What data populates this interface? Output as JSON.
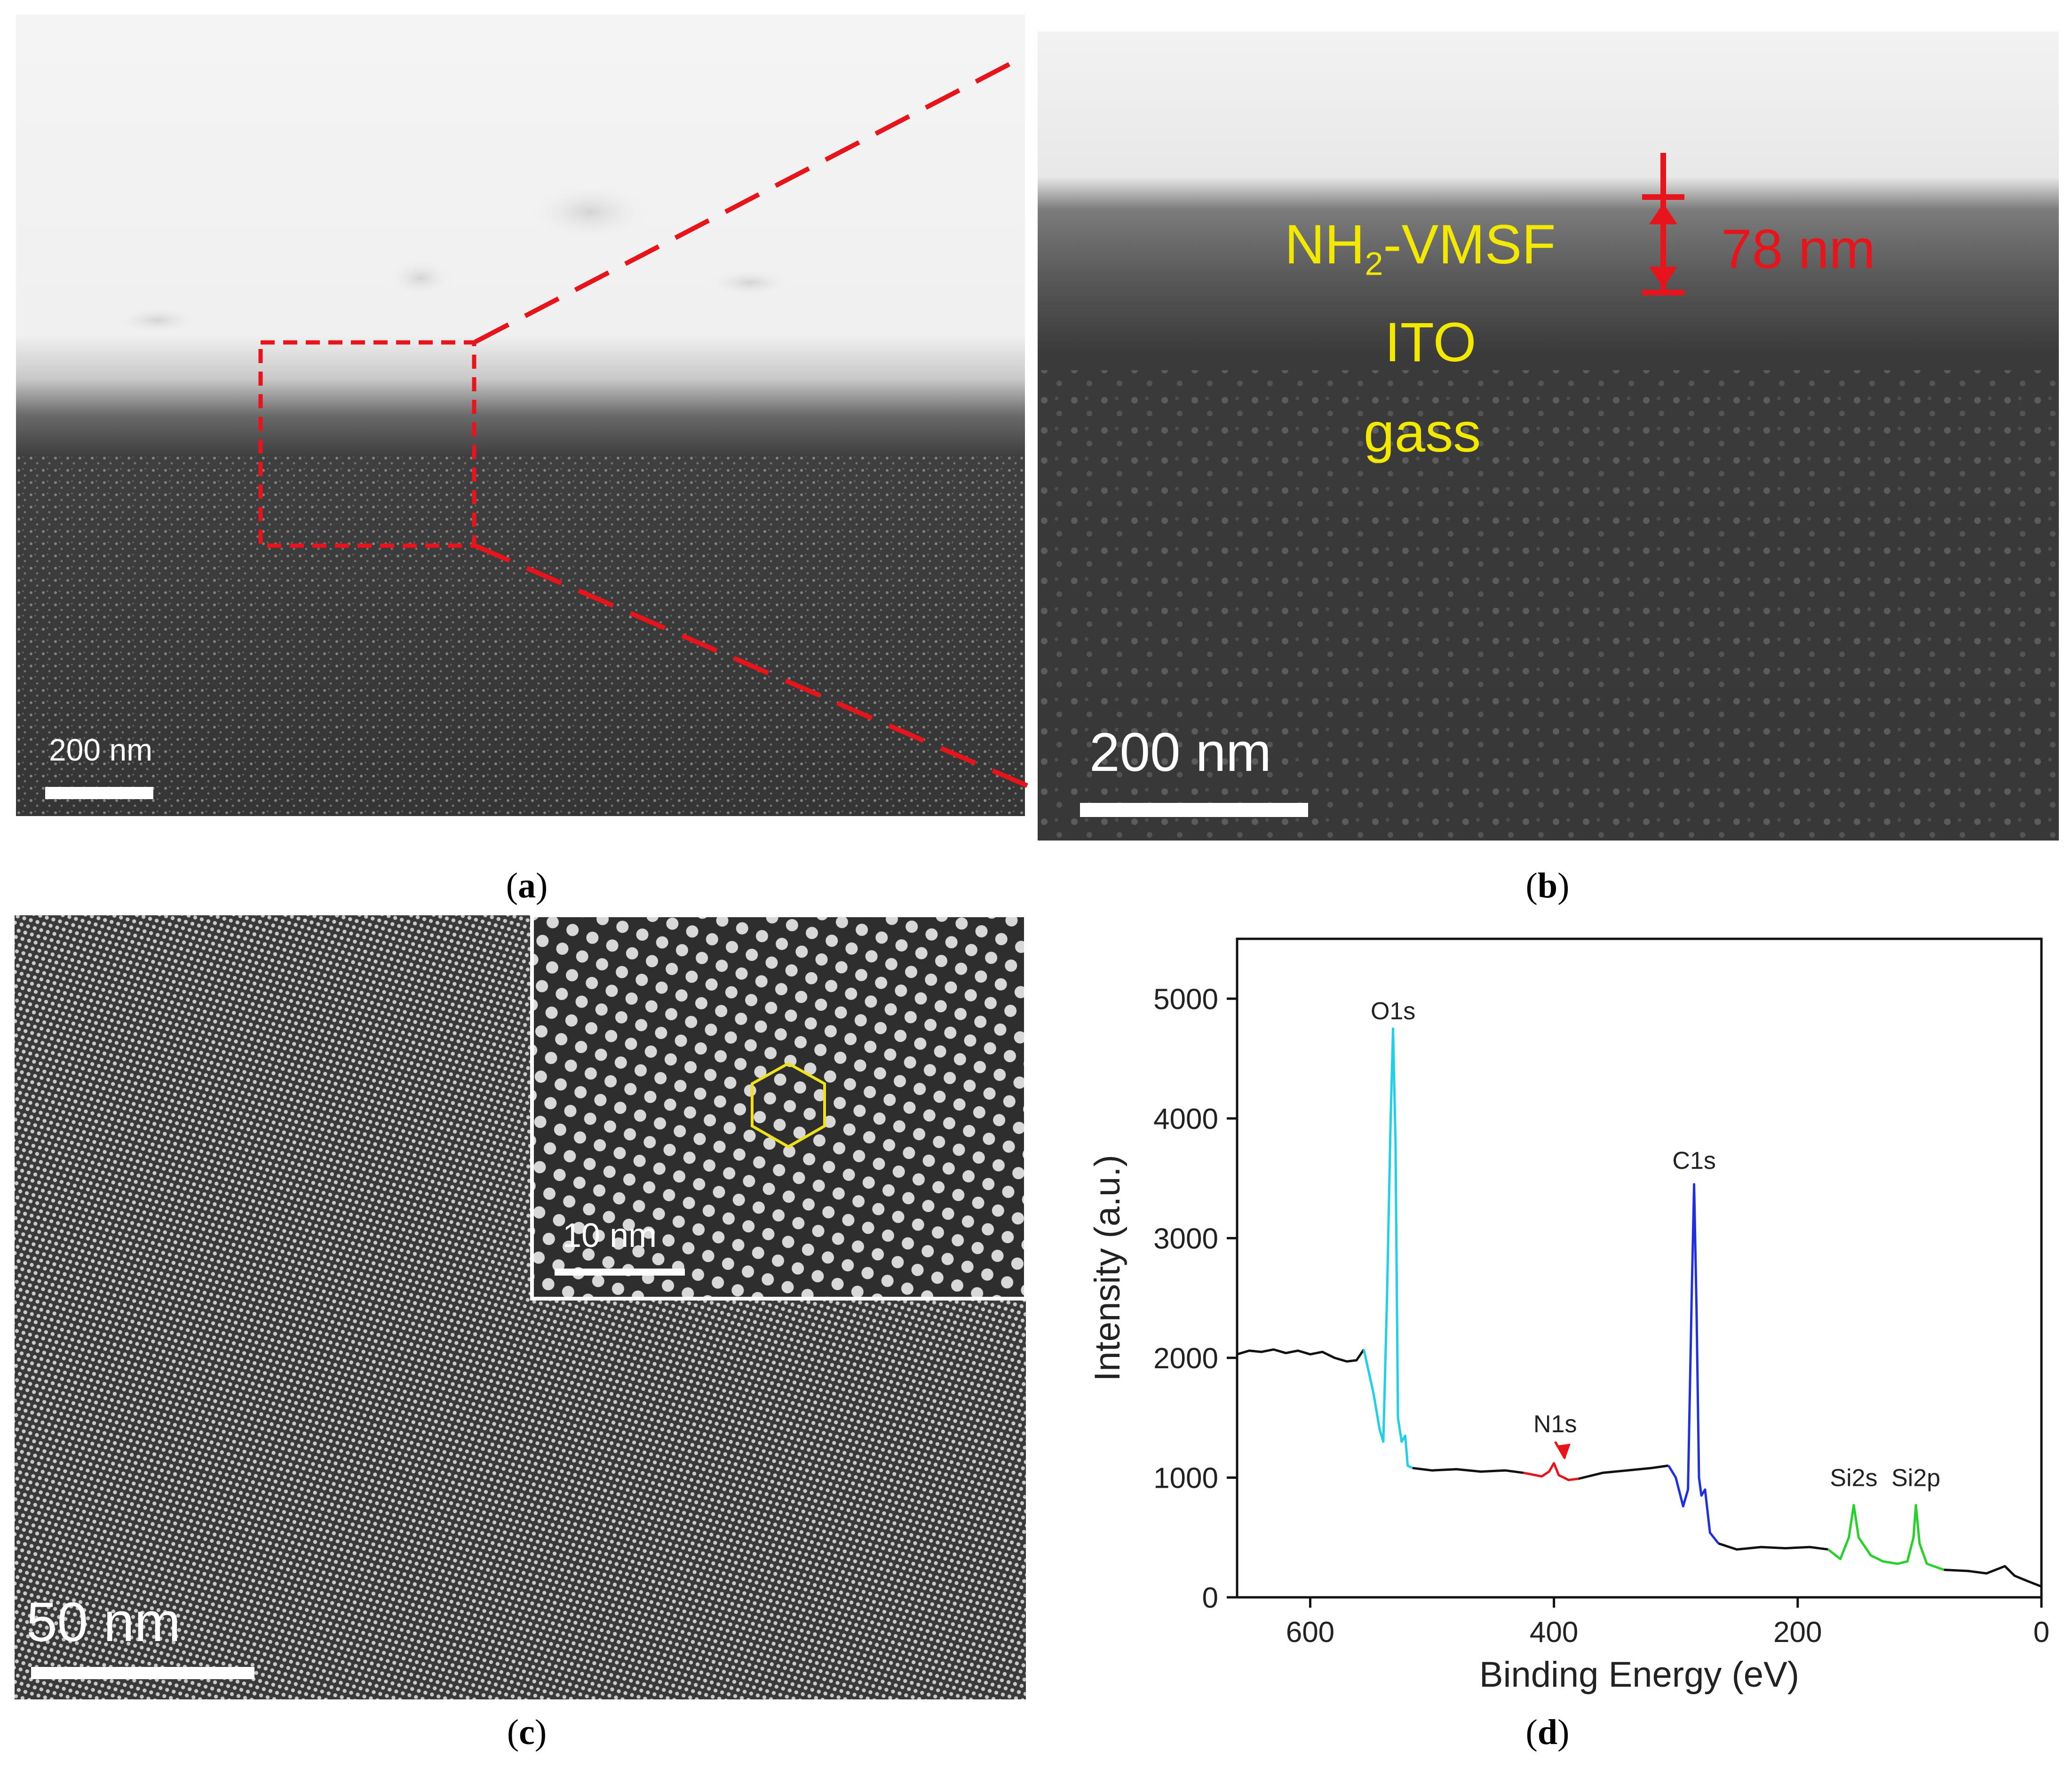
{
  "panels": {
    "a": {
      "letter": "a",
      "scale_bar": "200 nm"
    },
    "b": {
      "letter": "b",
      "scale_bar": "200 nm",
      "layers": [
        "NH",
        "2",
        "-VMSF"
      ],
      "layer_ito": "ITO",
      "layer_glass": "gass",
      "thickness": "78 nm"
    },
    "c": {
      "letter": "c",
      "scale_bar": "50 nm",
      "inset_scale_bar": "10 nm"
    },
    "d": {
      "letter": "d",
      "chart_data": {
        "type": "line",
        "xlabel": "Binding Energy (eV)",
        "ylabel": "Intensity (a.u.)",
        "xlim": [
          660,
          0
        ],
        "ylim": [
          0,
          5500
        ],
        "x_ticks": [
          600,
          400,
          200,
          0
        ],
        "y_ticks": [
          0,
          1000,
          2000,
          3000,
          4000,
          5000
        ],
        "grid": false,
        "peak_labels": [
          {
            "text": "O1s",
            "x": 532,
            "y": 4750
          },
          {
            "text": "N1s",
            "x": 399,
            "y": 1300
          },
          {
            "text": "C1s",
            "x": 285,
            "y": 3500
          },
          {
            "text": "Si2s",
            "x": 154,
            "y": 850
          },
          {
            "text": "Si2p",
            "x": 103,
            "y": 850
          }
        ],
        "series": [
          {
            "segment": "background-high",
            "color": "#111111",
            "points": [
              [
                660,
                2030
              ],
              [
                650,
                2060
              ],
              [
                640,
                2050
              ],
              [
                630,
                2070
              ],
              [
                620,
                2040
              ],
              [
                610,
                2060
              ],
              [
                600,
                2030
              ],
              [
                590,
                2050
              ],
              [
                580,
                2000
              ],
              [
                570,
                1970
              ],
              [
                562,
                1980
              ],
              [
                556,
                2070
              ]
            ]
          },
          {
            "segment": "O1s",
            "color": "#1fd0e6",
            "points": [
              [
                556,
                2070
              ],
              [
                548,
                1700
              ],
              [
                543,
                1400
              ],
              [
                540,
                1300
              ],
              [
                537,
                2500
              ],
              [
                534,
                4000
              ],
              [
                532,
                4750
              ],
              [
                530,
                3800
              ],
              [
                528,
                1500
              ],
              [
                525,
                1300
              ],
              [
                522,
                1350
              ],
              [
                520,
                1100
              ],
              [
                516,
                1080
              ]
            ]
          },
          {
            "segment": "background-mid",
            "color": "#111111",
            "points": [
              [
                516,
                1080
              ],
              [
                500,
                1060
              ],
              [
                480,
                1070
              ],
              [
                460,
                1050
              ],
              [
                440,
                1060
              ],
              [
                425,
                1040
              ]
            ]
          },
          {
            "segment": "N1s",
            "color": "#e8141b",
            "points": [
              [
                425,
                1040
              ],
              [
                410,
                1010
              ],
              [
                404,
                1050
              ],
              [
                400,
                1120
              ],
              [
                396,
                1020
              ],
              [
                388,
                980
              ],
              [
                380,
                990
              ]
            ]
          },
          {
            "segment": "background-mid2",
            "color": "#111111",
            "points": [
              [
                380,
                990
              ],
              [
                360,
                1040
              ],
              [
                340,
                1060
              ],
              [
                320,
                1080
              ],
              [
                306,
                1100
              ]
            ]
          },
          {
            "segment": "C1s",
            "color": "#2030e0",
            "points": [
              [
                306,
                1100
              ],
              [
                300,
                1000
              ],
              [
                294,
                760
              ],
              [
                290,
                900
              ],
              [
                287,
                2500
              ],
              [
                285,
                3450
              ],
              [
                283,
                2400
              ],
              [
                281,
                1000
              ],
              [
                279,
                850
              ],
              [
                276,
                900
              ],
              [
                272,
                540
              ],
              [
                265,
                450
              ]
            ]
          },
          {
            "segment": "background-low",
            "color": "#111111",
            "points": [
              [
                265,
                450
              ],
              [
                250,
                400
              ],
              [
                230,
                420
              ],
              [
                210,
                410
              ],
              [
                190,
                420
              ],
              [
                175,
                400
              ]
            ]
          },
          {
            "segment": "Si",
            "color": "#26d22a",
            "points": [
              [
                175,
                400
              ],
              [
                165,
                320
              ],
              [
                158,
                500
              ],
              [
                154,
                770
              ],
              [
                150,
                500
              ],
              [
                140,
                350
              ],
              [
                130,
                300
              ],
              [
                118,
                280
              ],
              [
                110,
                300
              ],
              [
                105,
                500
              ],
              [
                103,
                770
              ],
              [
                100,
                450
              ],
              [
                94,
                280
              ],
              [
                80,
                230
              ]
            ]
          },
          {
            "segment": "background-tail",
            "color": "#111111",
            "points": [
              [
                80,
                230
              ],
              [
                60,
                220
              ],
              [
                45,
                200
              ],
              [
                30,
                260
              ],
              [
                22,
                180
              ],
              [
                10,
                130
              ],
              [
                0,
                90
              ]
            ]
          }
        ]
      }
    }
  }
}
